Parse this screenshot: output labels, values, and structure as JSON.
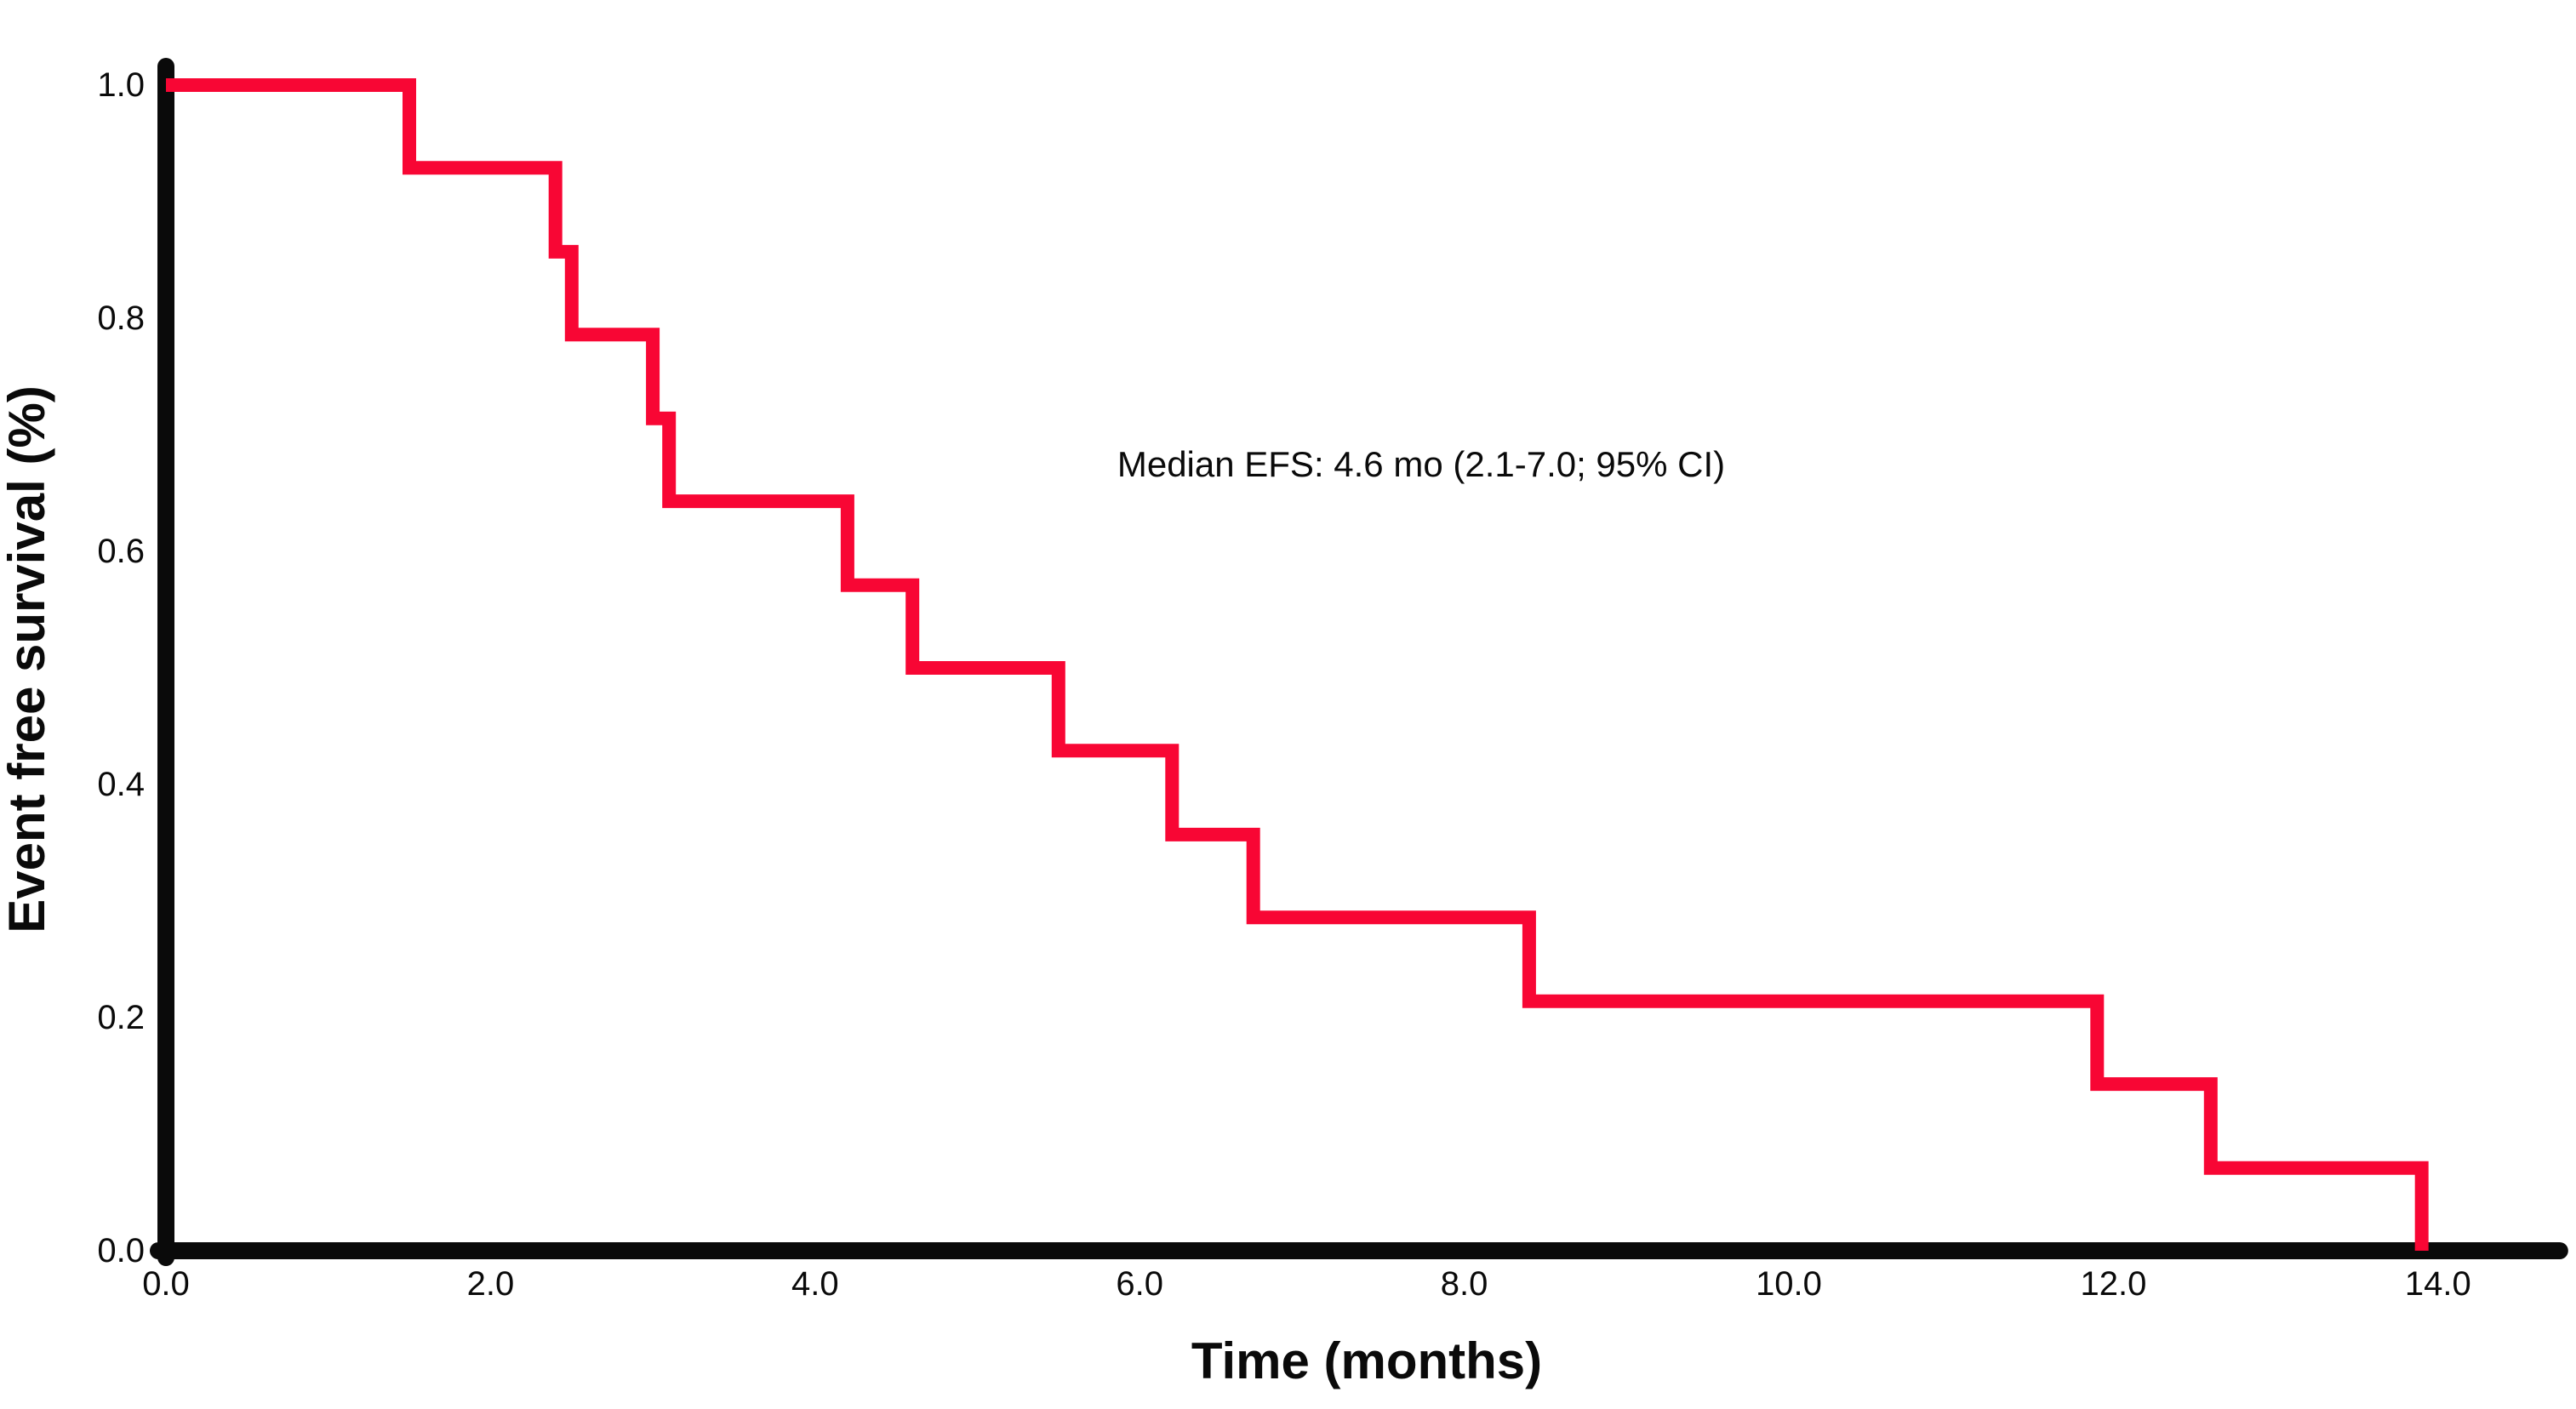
{
  "chart_data": {
    "type": "line",
    "subtype": "kaplan-meier-step-curve",
    "title": "",
    "xlabel": "Time (months)",
    "ylabel": "Event free survival (%)",
    "annotation": "Median EFS: 4.6 mo (2.1-7.0; 95% CI)",
    "xlim": [
      0,
      14.75
    ],
    "ylim": [
      0,
      1.0
    ],
    "grid": false,
    "legend_position": "none",
    "x_ticks": [
      {
        "value": 0,
        "label": "0.0"
      },
      {
        "value": 2,
        "label": "2.0"
      },
      {
        "value": 4,
        "label": "4.0"
      },
      {
        "value": 6,
        "label": "6.0"
      },
      {
        "value": 8,
        "label": "8.0"
      },
      {
        "value": 10,
        "label": "10.0"
      },
      {
        "value": 12,
        "label": "12.0"
      },
      {
        "value": 14,
        "label": "14.0"
      }
    ],
    "y_ticks": [
      {
        "value": 0.0,
        "label": "0.0"
      },
      {
        "value": 0.2,
        "label": "0.2"
      },
      {
        "value": 0.4,
        "label": "0.4"
      },
      {
        "value": 0.6,
        "label": "0.6"
      },
      {
        "value": 0.8,
        "label": "0.8"
      },
      {
        "value": 1.0,
        "label": "1.0"
      }
    ],
    "series": [
      {
        "name": "Event free survival",
        "color": "#F80634",
        "event_times": [
          1.5,
          2.4,
          2.5,
          3.0,
          3.1,
          4.2,
          4.6,
          5.5,
          6.2,
          6.7,
          8.4,
          11.9,
          12.6,
          13.9
        ],
        "survival_after_event": [
          0.929,
          0.857,
          0.786,
          0.714,
          0.643,
          0.571,
          0.5,
          0.429,
          0.357,
          0.286,
          0.214,
          0.143,
          0.071,
          0.0
        ],
        "step_points": [
          [
            0.0,
            1.0
          ],
          [
            1.5,
            1.0
          ],
          [
            1.5,
            0.929
          ],
          [
            2.4,
            0.929
          ],
          [
            2.4,
            0.857
          ],
          [
            2.5,
            0.857
          ],
          [
            2.5,
            0.786
          ],
          [
            3.0,
            0.786
          ],
          [
            3.0,
            0.714
          ],
          [
            3.1,
            0.714
          ],
          [
            3.1,
            0.643
          ],
          [
            4.2,
            0.643
          ],
          [
            4.2,
            0.571
          ],
          [
            4.6,
            0.571
          ],
          [
            4.6,
            0.5
          ],
          [
            5.5,
            0.5
          ],
          [
            5.5,
            0.429
          ],
          [
            6.2,
            0.429
          ],
          [
            6.2,
            0.357
          ],
          [
            6.7,
            0.357
          ],
          [
            6.7,
            0.286
          ],
          [
            8.4,
            0.286
          ],
          [
            8.4,
            0.214
          ],
          [
            11.9,
            0.214
          ],
          [
            11.9,
            0.143
          ],
          [
            12.6,
            0.143
          ],
          [
            12.6,
            0.071
          ],
          [
            13.9,
            0.071
          ],
          [
            13.9,
            0.0
          ]
        ]
      }
    ]
  },
  "colors": {
    "curve": "#F80634",
    "axis": "#0a0a0a",
    "text": "#0a0a0a",
    "background": "#FFFFFF"
  }
}
